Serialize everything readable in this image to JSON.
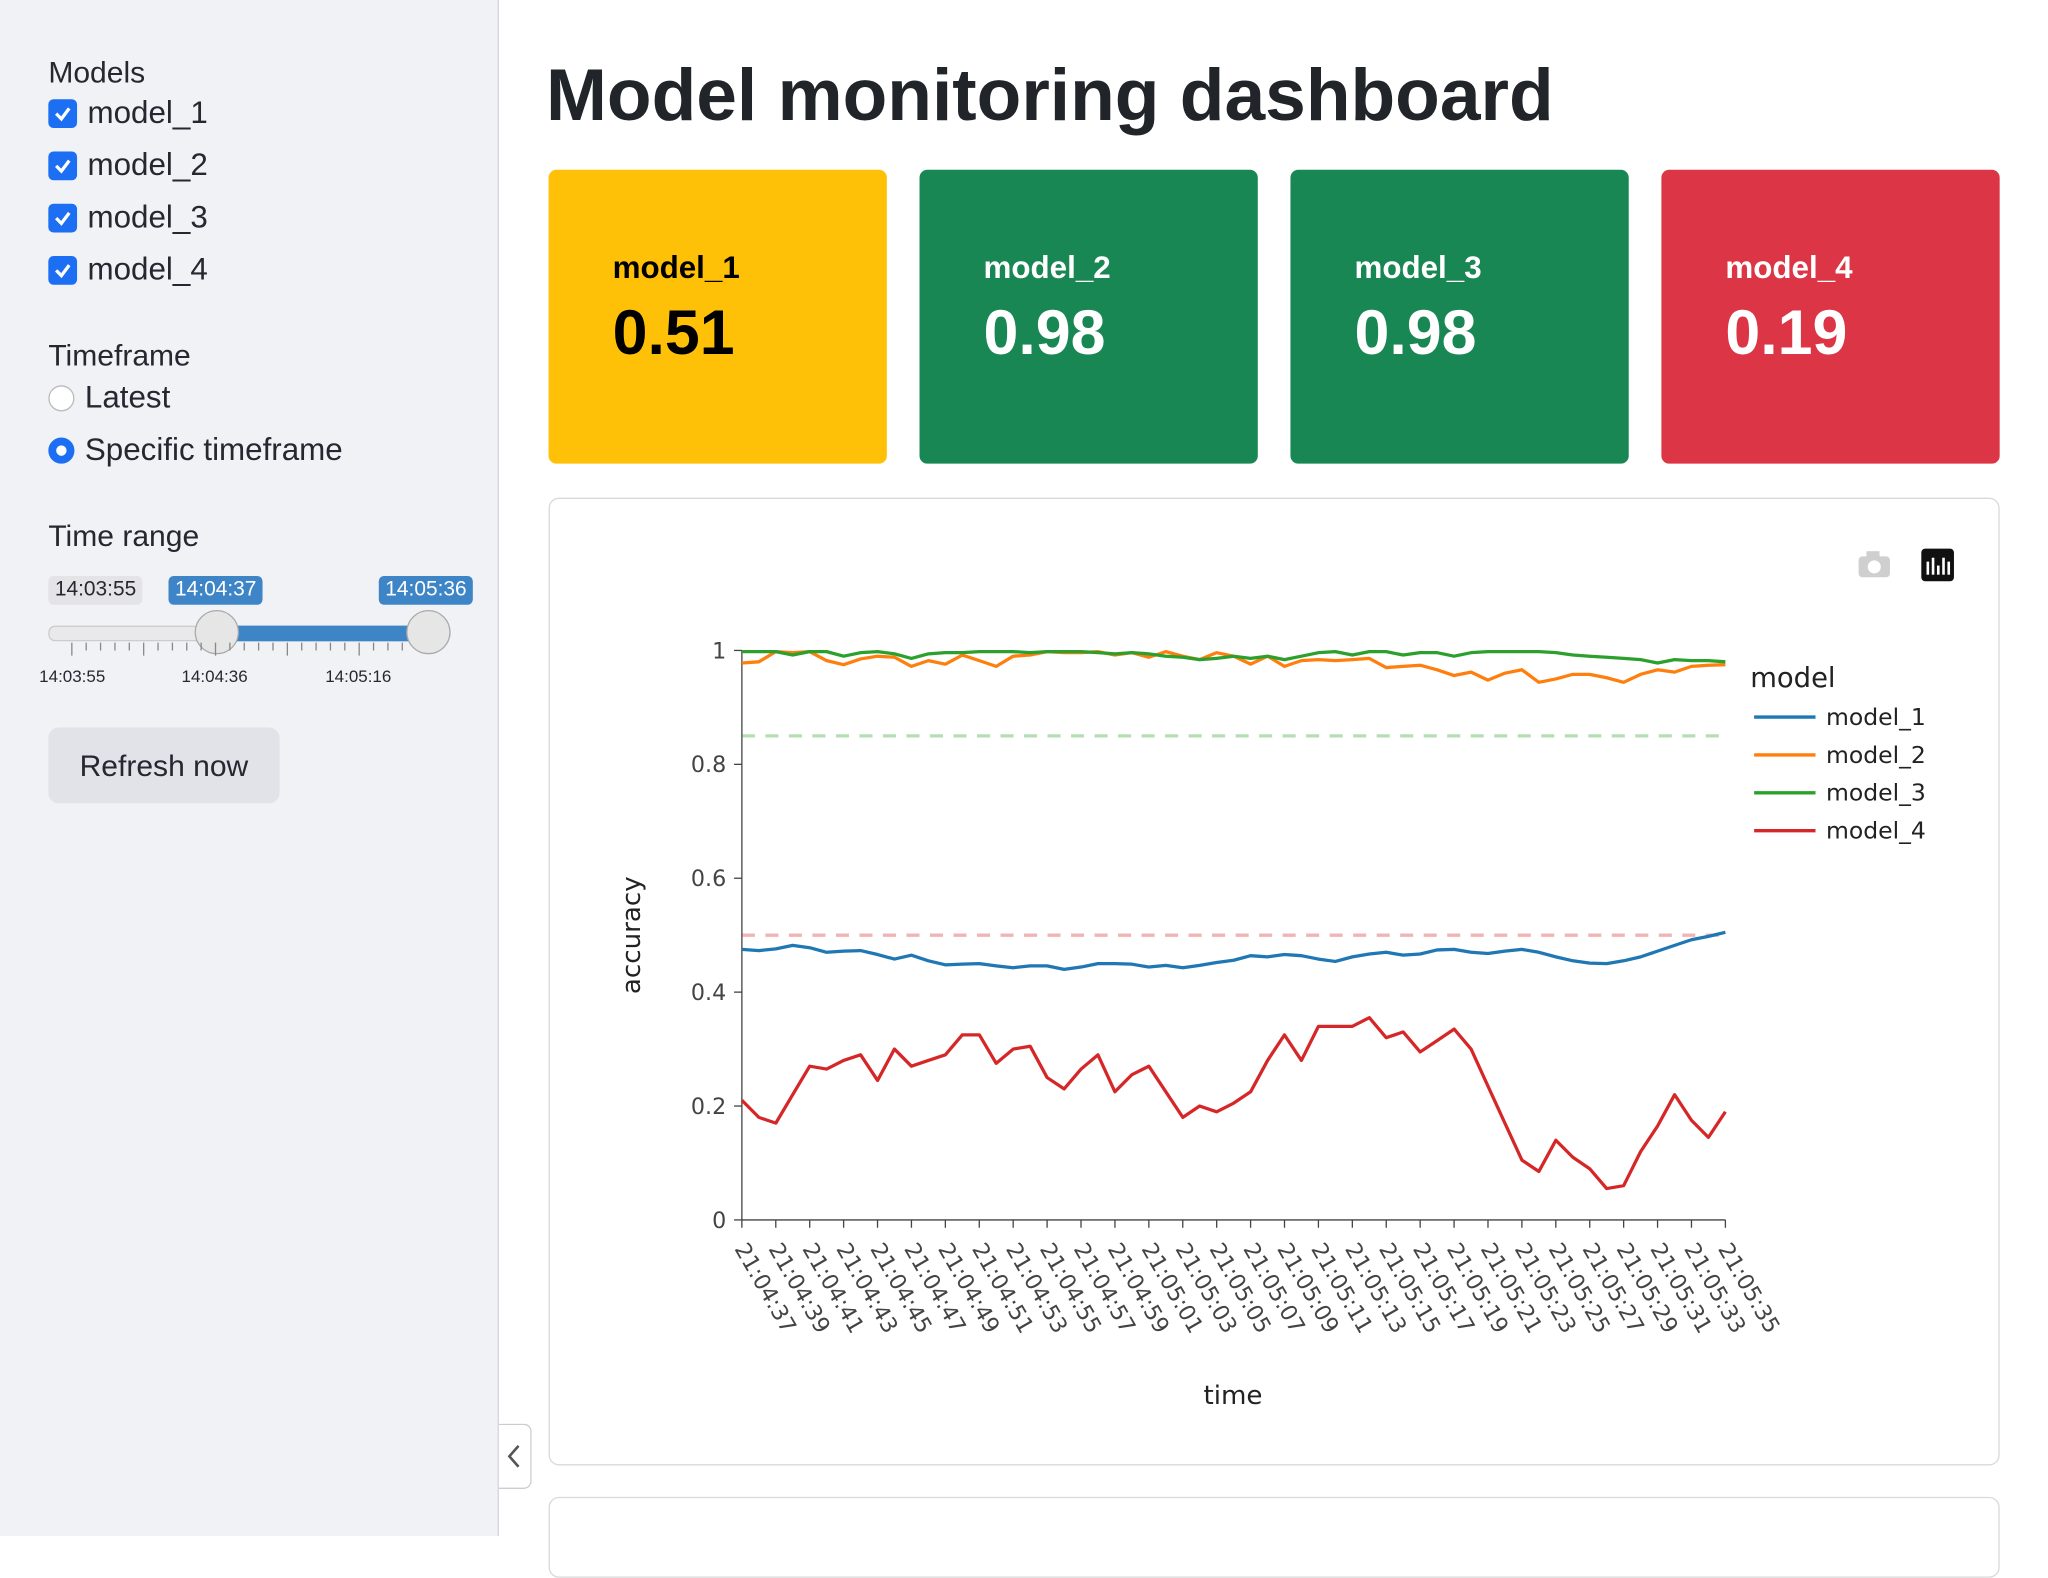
{
  "sidebar": {
    "models": {
      "label": "Models",
      "items": [
        {
          "label": "model_1",
          "checked": true
        },
        {
          "label": "model_2",
          "checked": true
        },
        {
          "label": "model_3",
          "checked": true
        },
        {
          "label": "model_4",
          "checked": true
        }
      ]
    },
    "timeframe": {
      "label": "Timeframe",
      "options": [
        {
          "label": "Latest",
          "selected": false
        },
        {
          "label": "Specific timeframe",
          "selected": true
        }
      ]
    },
    "time_range": {
      "label": "Time range",
      "min_label": "14:03:55",
      "start": "14:04:37",
      "end": "14:05:36",
      "ticks": [
        "14:03:55",
        "14:04:36",
        "14:05:16"
      ]
    },
    "button": "Refresh now"
  },
  "title": "Model monitoring dashboard",
  "cards": [
    {
      "label": "model_1",
      "value": 0.51,
      "color": "#ffc107",
      "text_color": "#000000"
    },
    {
      "label": "model_2",
      "value": 0.98,
      "color": "#198754",
      "text_color": "#ffffff"
    },
    {
      "label": "model_3",
      "value": 0.98,
      "color": "#198754",
      "text_color": "#ffffff"
    },
    {
      "label": "model_4",
      "value": 0.19,
      "color": "#dc3545",
      "text_color": "#ffffff"
    }
  ],
  "chart_data": {
    "type": "line",
    "x_label": "time",
    "y_label": "accuracy",
    "legend_title": "model",
    "legend": "right",
    "categories": [
      "21:04:37",
      null,
      "21:04:39",
      null,
      "21:04:41",
      null,
      "21:04:43",
      null,
      "21:04:45",
      null,
      "21:04:47",
      null,
      "21:04:49",
      null,
      "21:04:51",
      null,
      "21:04:53",
      null,
      "21:04:55",
      null,
      "21:04:57",
      null,
      "21:04:59",
      null,
      "21:05:01",
      null,
      "21:05:03",
      null,
      "21:05:05",
      null,
      "21:05:07",
      null,
      "21:05:09",
      null,
      "21:05:11",
      null,
      "21:05:13",
      null,
      "21:05:15",
      null,
      "21:05:17",
      null,
      "21:05:19",
      null,
      "21:05:21",
      null,
      "21:05:23",
      null,
      "21:05:25",
      null,
      "21:05:27",
      null,
      "21:05:29",
      null,
      "21:05:31",
      null,
      "21:05:33",
      null,
      "21:05:35"
    ],
    "ylim": [
      0,
      1
    ],
    "yticks": [
      0,
      0.2,
      0.4,
      0.6,
      0.8,
      1
    ],
    "thresholds": [
      {
        "value": 0.85,
        "color": "#2ca02c"
      },
      {
        "value": 0.5,
        "color": "#d62728"
      }
    ],
    "series": [
      {
        "name": "model_1",
        "color": "#1f77b4",
        "values": [
          0.475,
          0.473,
          0.476,
          0.482,
          0.478,
          0.47,
          0.472,
          0.473,
          0.466,
          0.458,
          0.465,
          0.455,
          0.448,
          0.449,
          0.45,
          0.446,
          0.443,
          0.446,
          0.446,
          0.44,
          0.444,
          0.45,
          0.45,
          0.449,
          0.444,
          0.447,
          0.443,
          0.447,
          0.452,
          0.456,
          0.464,
          0.462,
          0.466,
          0.464,
          0.458,
          0.454,
          0.462,
          0.467,
          0.47,
          0.465,
          0.467,
          0.474,
          0.475,
          0.47,
          0.468,
          0.472,
          0.475,
          0.47,
          0.462,
          0.455,
          0.451,
          0.45,
          0.455,
          0.462,
          0.472,
          0.482,
          0.492,
          0.498,
          0.505
        ]
      },
      {
        "name": "model_2",
        "color": "#ff7f0e",
        "values": [
          0.978,
          0.98,
          0.998,
          0.996,
          0.998,
          0.982,
          0.975,
          0.985,
          0.99,
          0.988,
          0.972,
          0.982,
          0.976,
          0.992,
          0.982,
          0.972,
          0.99,
          0.992,
          0.998,
          0.996,
          0.996,
          0.998,
          0.992,
          0.996,
          0.988,
          0.998,
          0.99,
          0.984,
          0.996,
          0.99,
          0.976,
          0.99,
          0.972,
          0.982,
          0.984,
          0.982,
          0.984,
          0.986,
          0.97,
          0.972,
          0.974,
          0.966,
          0.956,
          0.962,
          0.948,
          0.96,
          0.966,
          0.944,
          0.95,
          0.958,
          0.958,
          0.952,
          0.944,
          0.958,
          0.966,
          0.962,
          0.972,
          0.974,
          0.975
        ]
      },
      {
        "name": "model_3",
        "color": "#2ca02c",
        "values": [
          0.998,
          0.998,
          0.998,
          0.992,
          0.998,
          0.998,
          0.99,
          0.996,
          0.998,
          0.994,
          0.986,
          0.994,
          0.996,
          0.996,
          0.998,
          0.998,
          0.998,
          0.996,
          0.998,
          0.998,
          0.998,
          0.996,
          0.994,
          0.996,
          0.994,
          0.99,
          0.988,
          0.984,
          0.986,
          0.99,
          0.986,
          0.99,
          0.984,
          0.99,
          0.996,
          0.998,
          0.992,
          0.998,
          0.998,
          0.992,
          0.996,
          0.996,
          0.99,
          0.996,
          0.998,
          0.998,
          0.998,
          0.998,
          0.996,
          0.992,
          0.99,
          0.988,
          0.986,
          0.984,
          0.978,
          0.984,
          0.982,
          0.982,
          0.98
        ]
      },
      {
        "name": "model_4",
        "color": "#d62728",
        "values": [
          0.21,
          0.18,
          0.17,
          0.22,
          0.27,
          0.265,
          0.28,
          0.29,
          0.245,
          0.3,
          0.27,
          0.28,
          0.29,
          0.325,
          0.325,
          0.275,
          0.3,
          0.305,
          0.25,
          0.23,
          0.265,
          0.29,
          0.225,
          0.255,
          0.27,
          0.225,
          0.18,
          0.2,
          0.19,
          0.205,
          0.225,
          0.28,
          0.325,
          0.28,
          0.34,
          0.34,
          0.34,
          0.355,
          0.32,
          0.33,
          0.295,
          0.315,
          0.335,
          0.3,
          0.235,
          0.17,
          0.105,
          0.085,
          0.14,
          0.11,
          0.09,
          0.055,
          0.06,
          0.12,
          0.165,
          0.22,
          0.175,
          0.145,
          0.19
        ]
      }
    ]
  }
}
